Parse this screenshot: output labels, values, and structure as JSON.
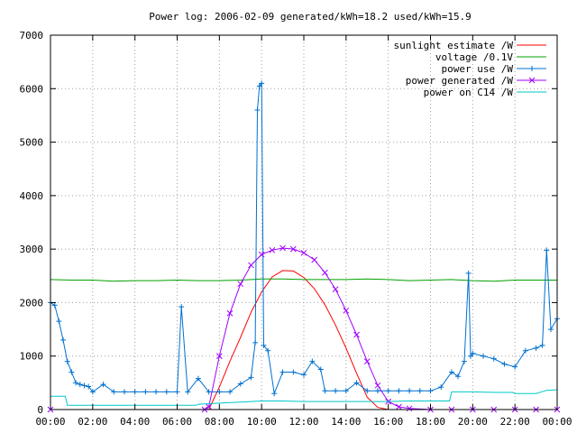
{
  "chart_data": {
    "type": "line",
    "title": "Power log: 2006-02-09 generated/kWh=18.2 used/kWh=15.9",
    "xlabel": "",
    "ylabel": "",
    "ylim": [
      0,
      7000
    ],
    "xlim_hours": [
      0,
      24
    ],
    "grid": true,
    "legend_position": "top-right",
    "x_ticks": [
      "00:00",
      "02:00",
      "04:00",
      "06:00",
      "08:00",
      "10:00",
      "12:00",
      "14:00",
      "16:00",
      "18:00",
      "20:00",
      "22:00",
      "00:00"
    ],
    "y_ticks": [
      0,
      1000,
      2000,
      3000,
      4000,
      5000,
      6000,
      7000
    ],
    "series": [
      {
        "name": "sunlight estimate /W",
        "color": "#ff0000",
        "marker": "none",
        "x": [
          7.5,
          8,
          8.5,
          9,
          9.5,
          10,
          10.5,
          11,
          11.5,
          12,
          12.5,
          13,
          13.5,
          14,
          14.5,
          15,
          15.5,
          16
        ],
        "y": [
          0,
          420,
          900,
          1350,
          1820,
          2200,
          2480,
          2600,
          2590,
          2470,
          2260,
          1960,
          1580,
          1150,
          680,
          230,
          40,
          0
        ]
      },
      {
        "name": "voltage /0.1V",
        "color": "#00a000",
        "marker": "none",
        "x": [
          0,
          1,
          2,
          3,
          4,
          5,
          6,
          7,
          8,
          9,
          10,
          11,
          12,
          13,
          14,
          15,
          16,
          17,
          18,
          19,
          20,
          21,
          22,
          23,
          24
        ],
        "y": [
          2430,
          2420,
          2420,
          2400,
          2410,
          2410,
          2420,
          2410,
          2410,
          2420,
          2440,
          2440,
          2430,
          2430,
          2430,
          2440,
          2430,
          2410,
          2420,
          2430,
          2410,
          2400,
          2420,
          2420,
          2420
        ]
      },
      {
        "name": "power use /W",
        "color": "#0070d0",
        "marker": "plus",
        "x": [
          0,
          0.2,
          0.4,
          0.6,
          0.8,
          1.0,
          1.2,
          1.4,
          1.6,
          1.8,
          2,
          2.5,
          3,
          3.5,
          4,
          4.5,
          5,
          5.5,
          6,
          6.2,
          6.5,
          7,
          7.5,
          8,
          8.5,
          9,
          9.5,
          9.7,
          9.8,
          9.9,
          10,
          10.1,
          10.3,
          10.6,
          11,
          11.5,
          12,
          12.4,
          12.8,
          13,
          13.5,
          14,
          14.5,
          15,
          15.5,
          16,
          16.5,
          17,
          17.5,
          18,
          18.5,
          19,
          19.3,
          19.6,
          19.8,
          19.9,
          20,
          20.5,
          21,
          21.5,
          22,
          22.5,
          23,
          23.3,
          23.5,
          23.7,
          24
        ],
        "y": [
          2000,
          1950,
          1650,
          1300,
          900,
          700,
          500,
          470,
          450,
          430,
          330,
          470,
          330,
          330,
          330,
          330,
          330,
          330,
          330,
          1920,
          330,
          580,
          330,
          330,
          330,
          480,
          600,
          1250,
          5600,
          6050,
          6100,
          1200,
          1100,
          300,
          700,
          700,
          650,
          900,
          750,
          350,
          350,
          350,
          500,
          350,
          350,
          350,
          350,
          350,
          350,
          350,
          420,
          700,
          620,
          900,
          2550,
          1000,
          1050,
          1000,
          950,
          850,
          800,
          1100,
          1150,
          1200,
          2980,
          1500,
          1700
        ]
      },
      {
        "name": "power generated /W",
        "color": "#a000ff",
        "marker": "cross",
        "x": [
          0,
          7.3,
          7.5,
          8,
          8.5,
          9,
          9.5,
          10,
          10.5,
          11,
          11.5,
          12,
          12.5,
          13,
          13.5,
          14,
          14.5,
          15,
          15.5,
          16,
          16.5,
          17,
          18,
          19,
          20,
          21,
          22,
          23,
          24
        ],
        "y": [
          0,
          0,
          50,
          1000,
          1800,
          2350,
          2700,
          2900,
          2980,
          3020,
          3000,
          2930,
          2800,
          2560,
          2250,
          1850,
          1400,
          900,
          450,
          150,
          50,
          20,
          0,
          0,
          0,
          0,
          0,
          0,
          0
        ]
      },
      {
        "name": "power on C14 /W",
        "color": "#00c8c8",
        "marker": "none",
        "x": [
          0,
          0.7,
          0.8,
          6.9,
          7,
          8,
          9,
          10,
          11,
          12,
          13,
          14,
          15,
          16,
          17,
          18,
          18.9,
          19,
          20,
          21,
          21.9,
          22,
          23,
          23.5,
          24
        ],
        "y": [
          250,
          250,
          80,
          80,
          100,
          120,
          140,
          160,
          160,
          150,
          150,
          150,
          150,
          150,
          160,
          160,
          160,
          330,
          330,
          320,
          320,
          300,
          300,
          360,
          370
        ]
      }
    ]
  }
}
